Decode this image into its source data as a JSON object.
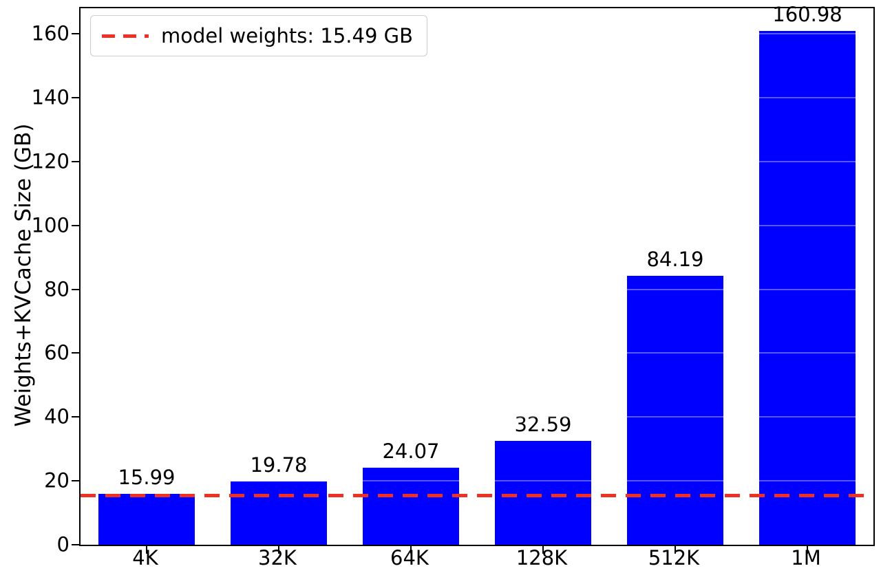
{
  "chart_data": {
    "type": "bar",
    "categories": [
      "4K",
      "32K",
      "64K",
      "128K",
      "512K",
      "1M"
    ],
    "values": [
      15.99,
      19.78,
      24.07,
      32.59,
      84.19,
      160.98
    ],
    "bar_labels": [
      "15.99",
      "19.78",
      "24.07",
      "32.59",
      "84.19",
      "160.98"
    ],
    "title": "",
    "xlabel": "",
    "ylabel": "Weights+KVCache Size (GB)",
    "ylim": [
      0,
      168
    ],
    "yticks": [
      0,
      20,
      40,
      60,
      80,
      100,
      120,
      140,
      160
    ],
    "bar_color": "#0000ff",
    "grid": false,
    "legend_position": "upper left",
    "reference_line": {
      "value": 15.49,
      "style": "dashed",
      "color": "#ee3124",
      "label": "model weights: 15.49 GB"
    }
  }
}
